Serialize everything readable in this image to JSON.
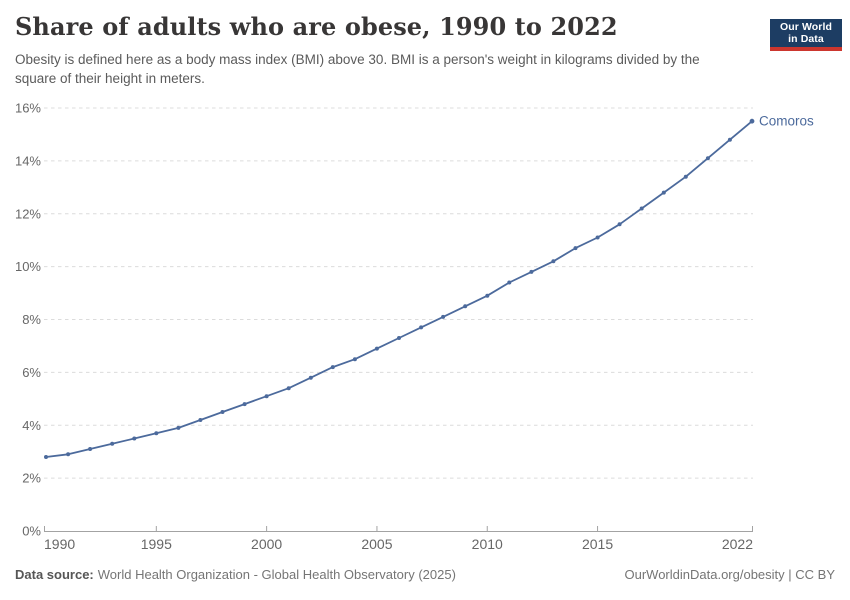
{
  "header": {
    "title": "Share of adults who are obese, 1990 to 2022",
    "subtitle": "Obesity is defined here as a body mass index (BMI) above 30. BMI is a person's weight in kilograms divided by the square of their height in meters.",
    "logo": {
      "line1": "Our World",
      "line2": "in Data"
    }
  },
  "chart_data": {
    "type": "line",
    "title": "Share of adults who are obese, 1990 to 2022",
    "entity": "Comoros",
    "xlabel": "",
    "ylabel": "",
    "xlim": [
      1990,
      2022
    ],
    "ylim": [
      0,
      16
    ],
    "x_ticks": [
      1990,
      1995,
      2000,
      2005,
      2010,
      2015,
      2022
    ],
    "y_ticks": [
      0,
      2,
      4,
      6,
      8,
      10,
      12,
      14,
      16
    ],
    "y_suffix": "%",
    "grid": "horizontal-dashed",
    "legend_position": "end-of-line-label",
    "series": [
      {
        "name": "Comoros",
        "color": "#4c6a9c",
        "x": [
          1990,
          1991,
          1992,
          1993,
          1994,
          1995,
          1996,
          1997,
          1998,
          1999,
          2000,
          2001,
          2002,
          2003,
          2004,
          2005,
          2006,
          2007,
          2008,
          2009,
          2010,
          2011,
          2012,
          2013,
          2014,
          2015,
          2016,
          2017,
          2018,
          2019,
          2020,
          2021,
          2022
        ],
        "values": [
          2.8,
          2.9,
          3.1,
          3.3,
          3.5,
          3.7,
          3.9,
          4.2,
          4.5,
          4.8,
          5.1,
          5.4,
          5.8,
          6.2,
          6.5,
          6.9,
          7.3,
          7.7,
          8.1,
          8.5,
          8.9,
          9.4,
          9.8,
          10.2,
          10.7,
          11.1,
          11.6,
          12.2,
          12.8,
          13.4,
          14.1,
          14.8,
          15.5
        ]
      }
    ]
  },
  "colors": {
    "line": "#4c6a9c",
    "grid": "#dcdcdc",
    "axis": "#a3a3a3",
    "tick_text": "#676767",
    "title_text": "#383636",
    "subtitle_text": "#5b5b5b",
    "logo_bg": "#1d3d63",
    "logo_accent": "#cc362e"
  },
  "footer": {
    "datasource_label": "Data source:",
    "datasource_value": "World Health Organization - Global Health Observatory (2025)",
    "rights": "OurWorldinData.org/obesity | CC BY"
  }
}
